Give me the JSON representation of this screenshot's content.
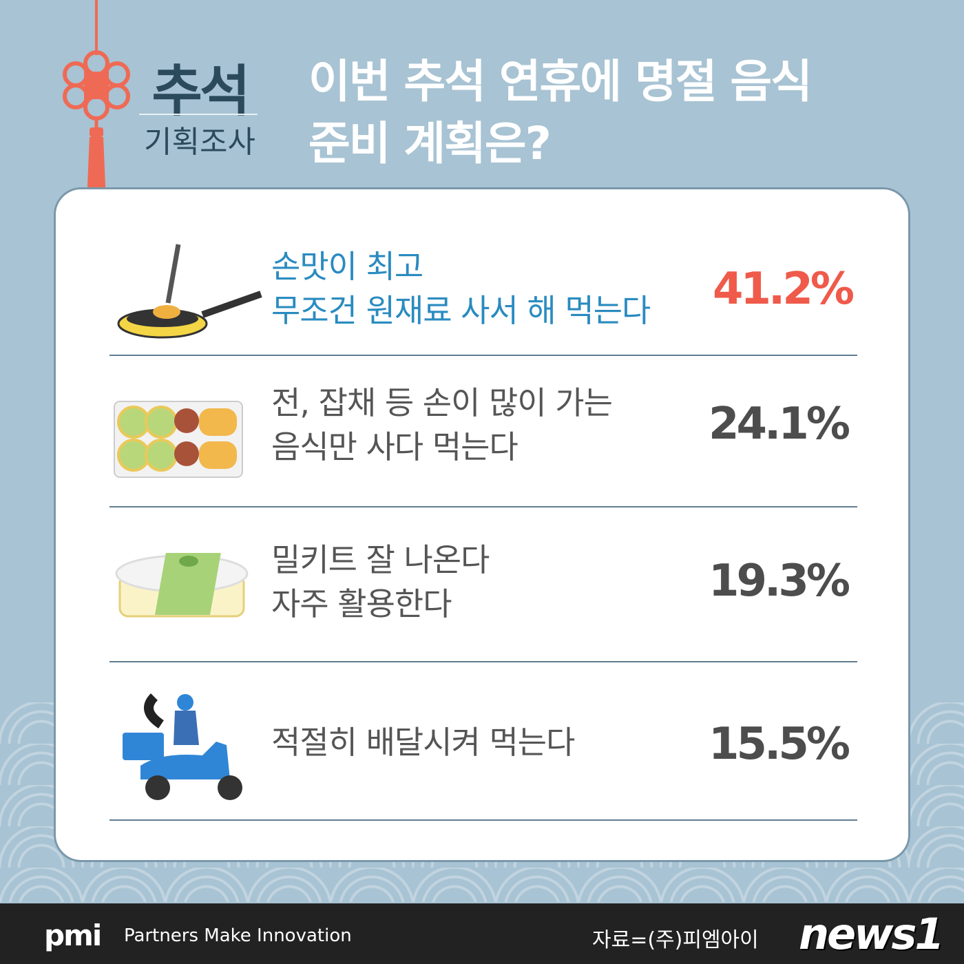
{
  "badge": {
    "title": "추석",
    "subtitle": "기획조사"
  },
  "headline": {
    "line1": "이번 추석 연휴에 명절 음식",
    "line2": "준비 계획은?"
  },
  "colors": {
    "background": "#a8c3d3",
    "highlight_text": "#2a8bc0",
    "highlight_pct": "#ef5a4a",
    "pct": "#4d4d4d"
  },
  "chart_data": {
    "type": "table",
    "rows": [
      {
        "line1": "손맛이 최고",
        "line2": "무조건 원재료 사서 해 먹는다",
        "value": 41.2,
        "display": "41.2%",
        "icon": "frying-pan"
      },
      {
        "line1": "전, 잡채 등 손이 많이 가는",
        "line2": "음식만 사다 먹는다",
        "value": 24.1,
        "display": "24.1%",
        "icon": "jeon-tray"
      },
      {
        "line1": "밀키트 잘 나온다",
        "line2": "자주 활용한다",
        "value": 19.3,
        "display": "19.3%",
        "icon": "meal-kit"
      },
      {
        "line1": "적절히 배달시켜 먹는다",
        "line2": "",
        "value": 15.5,
        "display": "15.5%",
        "icon": "delivery-scooter"
      }
    ]
  },
  "footer": {
    "logo": "pmi",
    "tagline": "Partners Make Innovation",
    "source": "자료=(주)피엠아이",
    "watermark": "news1"
  }
}
